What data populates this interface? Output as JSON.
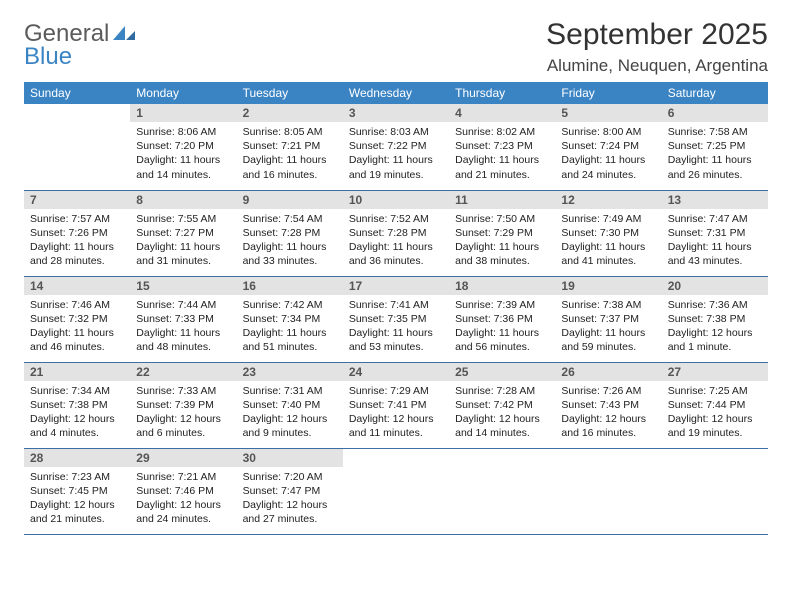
{
  "logo": {
    "word1": "General",
    "word2": "Blue"
  },
  "title": "September 2025",
  "location": "Alumine, Neuquen, Argentina",
  "colors": {
    "header_bg": "#3b84c4",
    "header_text": "#ffffff",
    "daynum_bg": "#e3e3e3",
    "daynum_text": "#555555",
    "border": "#3b6fa5",
    "logo_gray": "#5b5b5b",
    "logo_blue": "#3b84c4"
  },
  "weekdays": [
    "Sunday",
    "Monday",
    "Tuesday",
    "Wednesday",
    "Thursday",
    "Friday",
    "Saturday"
  ],
  "weeks": [
    [
      null,
      {
        "n": "1",
        "sr": "Sunrise: 8:06 AM",
        "ss": "Sunset: 7:20 PM",
        "d1": "Daylight: 11 hours",
        "d2": "and 14 minutes."
      },
      {
        "n": "2",
        "sr": "Sunrise: 8:05 AM",
        "ss": "Sunset: 7:21 PM",
        "d1": "Daylight: 11 hours",
        "d2": "and 16 minutes."
      },
      {
        "n": "3",
        "sr": "Sunrise: 8:03 AM",
        "ss": "Sunset: 7:22 PM",
        "d1": "Daylight: 11 hours",
        "d2": "and 19 minutes."
      },
      {
        "n": "4",
        "sr": "Sunrise: 8:02 AM",
        "ss": "Sunset: 7:23 PM",
        "d1": "Daylight: 11 hours",
        "d2": "and 21 minutes."
      },
      {
        "n": "5",
        "sr": "Sunrise: 8:00 AM",
        "ss": "Sunset: 7:24 PM",
        "d1": "Daylight: 11 hours",
        "d2": "and 24 minutes."
      },
      {
        "n": "6",
        "sr": "Sunrise: 7:58 AM",
        "ss": "Sunset: 7:25 PM",
        "d1": "Daylight: 11 hours",
        "d2": "and 26 minutes."
      }
    ],
    [
      {
        "n": "7",
        "sr": "Sunrise: 7:57 AM",
        "ss": "Sunset: 7:26 PM",
        "d1": "Daylight: 11 hours",
        "d2": "and 28 minutes."
      },
      {
        "n": "8",
        "sr": "Sunrise: 7:55 AM",
        "ss": "Sunset: 7:27 PM",
        "d1": "Daylight: 11 hours",
        "d2": "and 31 minutes."
      },
      {
        "n": "9",
        "sr": "Sunrise: 7:54 AM",
        "ss": "Sunset: 7:28 PM",
        "d1": "Daylight: 11 hours",
        "d2": "and 33 minutes."
      },
      {
        "n": "10",
        "sr": "Sunrise: 7:52 AM",
        "ss": "Sunset: 7:28 PM",
        "d1": "Daylight: 11 hours",
        "d2": "and 36 minutes."
      },
      {
        "n": "11",
        "sr": "Sunrise: 7:50 AM",
        "ss": "Sunset: 7:29 PM",
        "d1": "Daylight: 11 hours",
        "d2": "and 38 minutes."
      },
      {
        "n": "12",
        "sr": "Sunrise: 7:49 AM",
        "ss": "Sunset: 7:30 PM",
        "d1": "Daylight: 11 hours",
        "d2": "and 41 minutes."
      },
      {
        "n": "13",
        "sr": "Sunrise: 7:47 AM",
        "ss": "Sunset: 7:31 PM",
        "d1": "Daylight: 11 hours",
        "d2": "and 43 minutes."
      }
    ],
    [
      {
        "n": "14",
        "sr": "Sunrise: 7:46 AM",
        "ss": "Sunset: 7:32 PM",
        "d1": "Daylight: 11 hours",
        "d2": "and 46 minutes."
      },
      {
        "n": "15",
        "sr": "Sunrise: 7:44 AM",
        "ss": "Sunset: 7:33 PM",
        "d1": "Daylight: 11 hours",
        "d2": "and 48 minutes."
      },
      {
        "n": "16",
        "sr": "Sunrise: 7:42 AM",
        "ss": "Sunset: 7:34 PM",
        "d1": "Daylight: 11 hours",
        "d2": "and 51 minutes."
      },
      {
        "n": "17",
        "sr": "Sunrise: 7:41 AM",
        "ss": "Sunset: 7:35 PM",
        "d1": "Daylight: 11 hours",
        "d2": "and 53 minutes."
      },
      {
        "n": "18",
        "sr": "Sunrise: 7:39 AM",
        "ss": "Sunset: 7:36 PM",
        "d1": "Daylight: 11 hours",
        "d2": "and 56 minutes."
      },
      {
        "n": "19",
        "sr": "Sunrise: 7:38 AM",
        "ss": "Sunset: 7:37 PM",
        "d1": "Daylight: 11 hours",
        "d2": "and 59 minutes."
      },
      {
        "n": "20",
        "sr": "Sunrise: 7:36 AM",
        "ss": "Sunset: 7:38 PM",
        "d1": "Daylight: 12 hours",
        "d2": "and 1 minute."
      }
    ],
    [
      {
        "n": "21",
        "sr": "Sunrise: 7:34 AM",
        "ss": "Sunset: 7:38 PM",
        "d1": "Daylight: 12 hours",
        "d2": "and 4 minutes."
      },
      {
        "n": "22",
        "sr": "Sunrise: 7:33 AM",
        "ss": "Sunset: 7:39 PM",
        "d1": "Daylight: 12 hours",
        "d2": "and 6 minutes."
      },
      {
        "n": "23",
        "sr": "Sunrise: 7:31 AM",
        "ss": "Sunset: 7:40 PM",
        "d1": "Daylight: 12 hours",
        "d2": "and 9 minutes."
      },
      {
        "n": "24",
        "sr": "Sunrise: 7:29 AM",
        "ss": "Sunset: 7:41 PM",
        "d1": "Daylight: 12 hours",
        "d2": "and 11 minutes."
      },
      {
        "n": "25",
        "sr": "Sunrise: 7:28 AM",
        "ss": "Sunset: 7:42 PM",
        "d1": "Daylight: 12 hours",
        "d2": "and 14 minutes."
      },
      {
        "n": "26",
        "sr": "Sunrise: 7:26 AM",
        "ss": "Sunset: 7:43 PM",
        "d1": "Daylight: 12 hours",
        "d2": "and 16 minutes."
      },
      {
        "n": "27",
        "sr": "Sunrise: 7:25 AM",
        "ss": "Sunset: 7:44 PM",
        "d1": "Daylight: 12 hours",
        "d2": "and 19 minutes."
      }
    ],
    [
      {
        "n": "28",
        "sr": "Sunrise: 7:23 AM",
        "ss": "Sunset: 7:45 PM",
        "d1": "Daylight: 12 hours",
        "d2": "and 21 minutes."
      },
      {
        "n": "29",
        "sr": "Sunrise: 7:21 AM",
        "ss": "Sunset: 7:46 PM",
        "d1": "Daylight: 12 hours",
        "d2": "and 24 minutes."
      },
      {
        "n": "30",
        "sr": "Sunrise: 7:20 AM",
        "ss": "Sunset: 7:47 PM",
        "d1": "Daylight: 12 hours",
        "d2": "and 27 minutes."
      },
      null,
      null,
      null,
      null
    ]
  ]
}
